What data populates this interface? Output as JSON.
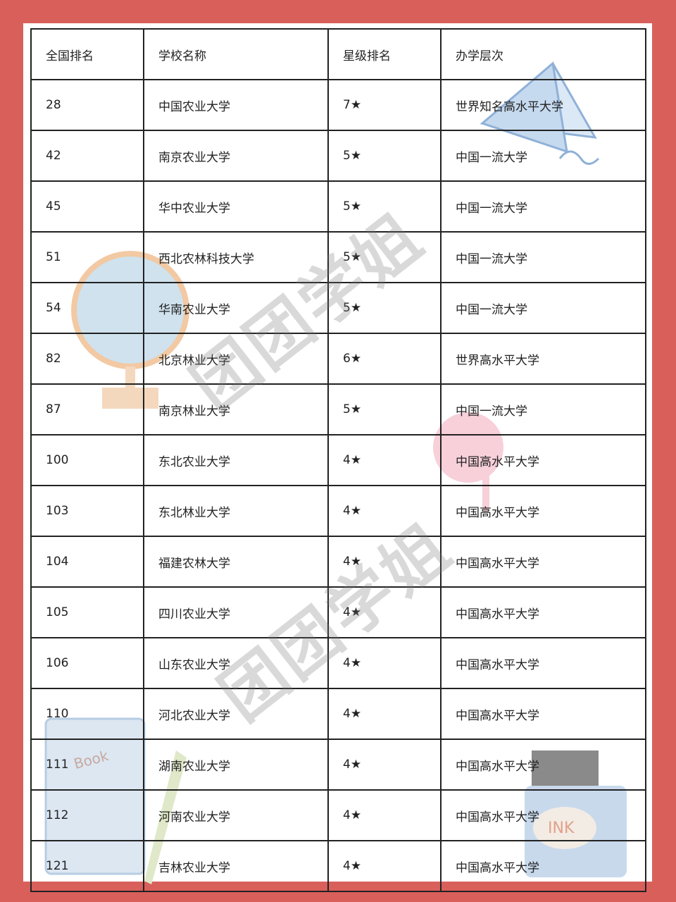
{
  "table": {
    "headers": [
      "全国排名",
      "学校名称",
      "星级排名",
      "办学层次"
    ],
    "rows": [
      [
        "28",
        "中国农业大学",
        "7★",
        "世界知名高水平大学"
      ],
      [
        "42",
        "南京农业大学",
        "5★",
        "中国一流大学"
      ],
      [
        "45",
        "华中农业大学",
        "5★",
        "中国一流大学"
      ],
      [
        "51",
        "西北农林科技大学",
        "5★",
        "中国一流大学"
      ],
      [
        "54",
        "华南农业大学",
        "5★",
        "中国一流大学"
      ],
      [
        "82",
        "北京林业大学",
        "6★",
        "世界高水平大学"
      ],
      [
        "87",
        "南京林业大学",
        "5★",
        "中国一流大学"
      ],
      [
        "100",
        "东北农业大学",
        "4★",
        "中国高水平大学"
      ],
      [
        "103",
        "东北林业大学",
        "4★",
        "中国高水平大学"
      ],
      [
        "104",
        "福建农林大学",
        "4★",
        "中国高水平大学"
      ],
      [
        "105",
        "四川农业大学",
        "4★",
        "中国高水平大学"
      ],
      [
        "106",
        "山东农业大学",
        "4★",
        "中国高水平大学"
      ],
      [
        "110",
        "河北农业大学",
        "4★",
        "中国高水平大学"
      ],
      [
        "111",
        "湖南农业大学",
        "4★",
        "中国高水平大学"
      ],
      [
        "112",
        "河南农业大学",
        "4★",
        "中国高水平大学"
      ],
      [
        "121",
        "吉林农业大学",
        "4★",
        "中国高水平大学"
      ]
    ]
  },
  "watermark": "团团学姐",
  "decorations": {
    "book_label": "Book",
    "ink_label": "INK"
  },
  "colors": {
    "background": "#d95f5b",
    "border": "#222222"
  }
}
